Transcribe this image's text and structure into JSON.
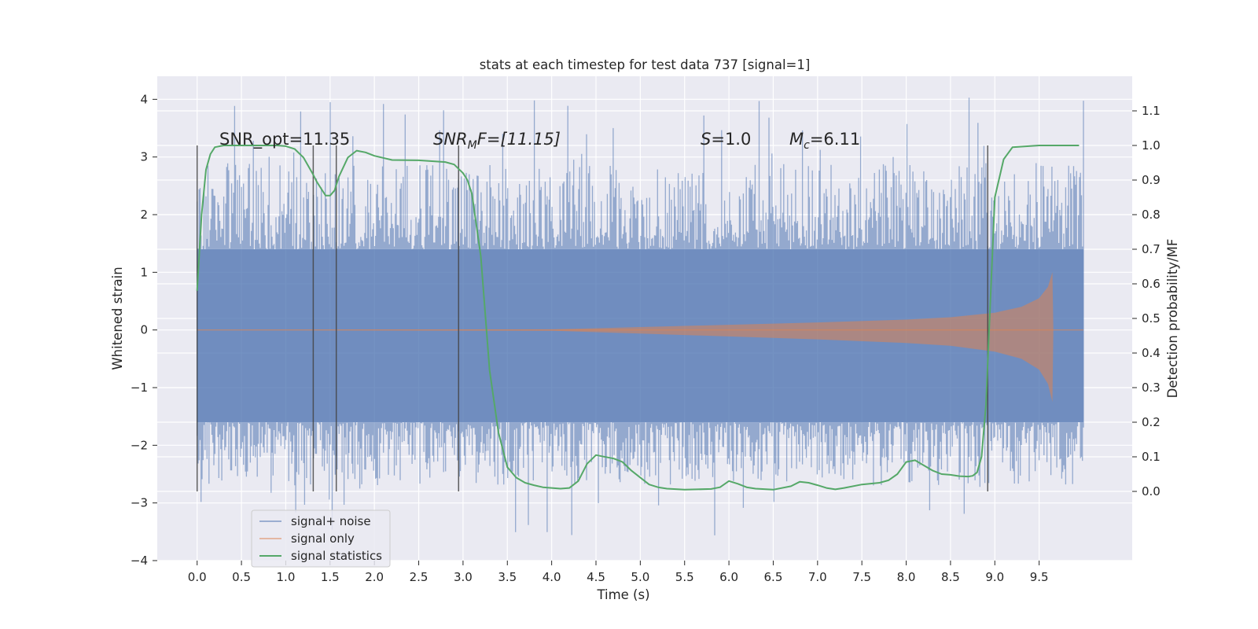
{
  "chart_data": {
    "type": "line",
    "title": "stats at each timestep for test data 737 [signal=1]",
    "xlabel": "Time (s)",
    "ylabel_left": "Whitened strain",
    "ylabel_right": "Detection probability/MF",
    "xlim": [
      -0.45,
      10.55
    ],
    "ylim_left": [
      -4,
      4.4
    ],
    "ylim_right": [
      -0.2,
      1.2
    ],
    "x_ticks": [
      "0.0",
      "0.5",
      "1.0",
      "1.5",
      "2.0",
      "2.5",
      "3.0",
      "3.5",
      "4.0",
      "4.5",
      "5.0",
      "5.5",
      "6.0",
      "6.5",
      "7.0",
      "7.5",
      "8.0",
      "8.5",
      "9.0",
      "9.5"
    ],
    "y_ticks_left": [
      "−4",
      "−3",
      "−2",
      "−1",
      "0",
      "1",
      "2",
      "3",
      "4"
    ],
    "y_ticks_right": [
      "0.0",
      "0.1",
      "0.2",
      "0.3",
      "0.4",
      "0.5",
      "0.6",
      "0.7",
      "0.8",
      "0.9",
      "1.0",
      "1.1"
    ],
    "grid": true,
    "legend_placement": "lower-left",
    "annotations": {
      "snr_opt": "SNR_opt=11.35",
      "snr_mf_main": "SNR",
      "snr_mf_sub": "M",
      "snr_mf_rest": "F=[11.15]",
      "s_main": "S",
      "s_rest": "=1.0",
      "mc_main": "M",
      "mc_sub": "c",
      "mc_rest": "=6.11"
    },
    "series": [
      {
        "name": "signal+ noise",
        "color": "#4c72b0",
        "time_range": [
          0.0,
          10.0
        ],
        "core_band": [
          -1.6,
          1.4
        ],
        "peak_range": [
          -3.6,
          4.05
        ]
      },
      {
        "name": "signal only",
        "color": "#dd8452",
        "time_range": [
          0.0,
          10.0
        ],
        "envelope": {
          "t": [
            0.0,
            4.0,
            5.0,
            6.0,
            7.0,
            8.0,
            8.5,
            9.0,
            9.3,
            9.5,
            9.6,
            9.65,
            9.66,
            10.0
          ],
          "amp": [
            0.0,
            0.01,
            0.05,
            0.09,
            0.13,
            0.18,
            0.22,
            0.3,
            0.4,
            0.55,
            0.75,
            1.0,
            0.0,
            0.0
          ]
        }
      },
      {
        "name": "signal statistics",
        "color": "#55a868",
        "x": [
          0.0,
          0.05,
          0.1,
          0.15,
          0.2,
          0.3,
          0.5,
          0.7,
          0.9,
          1.0,
          1.1,
          1.2,
          1.3,
          1.35,
          1.4,
          1.45,
          1.5,
          1.55,
          1.6,
          1.7,
          1.8,
          1.9,
          2.0,
          2.2,
          2.5,
          2.8,
          2.9,
          3.0,
          3.05,
          3.1,
          3.2,
          3.3,
          3.4,
          3.5,
          3.6,
          3.7,
          3.8,
          3.9,
          4.0,
          4.1,
          4.2,
          4.3,
          4.4,
          4.5,
          4.7,
          4.8,
          4.9,
          5.0,
          5.1,
          5.2,
          5.3,
          5.5,
          5.8,
          5.9,
          6.0,
          6.1,
          6.2,
          6.3,
          6.5,
          6.7,
          6.8,
          6.9,
          7.0,
          7.1,
          7.2,
          7.3,
          7.5,
          7.7,
          7.8,
          7.9,
          8.0,
          8.1,
          8.2,
          8.3,
          8.4,
          8.5,
          8.6,
          8.7,
          8.75,
          8.8,
          8.85,
          8.9,
          8.95,
          9.0,
          9.1,
          9.2,
          9.5,
          9.8,
          9.95
        ],
        "y": [
          0.58,
          0.8,
          0.93,
          0.975,
          0.995,
          1.0,
          1.0,
          1.0,
          1.0,
          0.998,
          0.99,
          0.965,
          0.92,
          0.895,
          0.875,
          0.855,
          0.855,
          0.87,
          0.91,
          0.965,
          0.985,
          0.98,
          0.97,
          0.958,
          0.957,
          0.952,
          0.945,
          0.92,
          0.9,
          0.86,
          0.68,
          0.35,
          0.17,
          0.07,
          0.04,
          0.025,
          0.018,
          0.012,
          0.01,
          0.008,
          0.01,
          0.03,
          0.08,
          0.105,
          0.095,
          0.085,
          0.06,
          0.04,
          0.02,
          0.012,
          0.008,
          0.005,
          0.007,
          0.012,
          0.03,
          0.022,
          0.012,
          0.008,
          0.005,
          0.015,
          0.028,
          0.025,
          0.018,
          0.01,
          0.006,
          0.01,
          0.02,
          0.025,
          0.032,
          0.05,
          0.085,
          0.09,
          0.075,
          0.06,
          0.05,
          0.048,
          0.044,
          0.043,
          0.045,
          0.055,
          0.1,
          0.25,
          0.55,
          0.85,
          0.96,
          0.995,
          1.0,
          1.0,
          1.0
        ]
      }
    ],
    "vertical_lines": [
      0.0,
      1.31,
      1.57,
      2.95,
      8.92
    ]
  }
}
